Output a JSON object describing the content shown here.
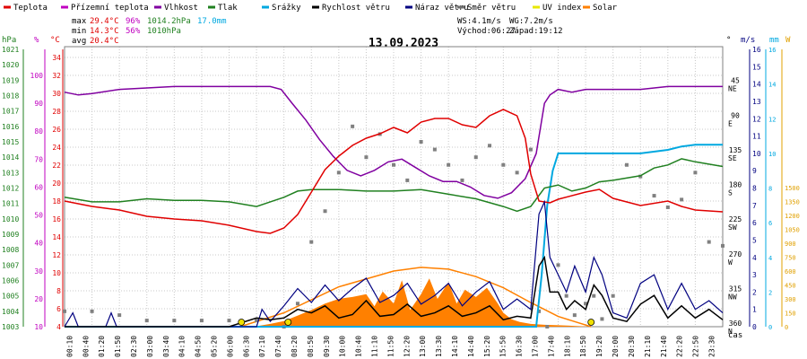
{
  "chart_data": {
    "type": "line",
    "title": "13.09.2023",
    "xlabel": "čas",
    "legend": [
      {
        "label": "Teplota",
        "color": "#e00000"
      },
      {
        "label": "Přízemní teplota",
        "color": "#c000c0"
      },
      {
        "label": "Vlhkost",
        "color": "#8000a0"
      },
      {
        "label": "Tlak",
        "color": "#208020"
      },
      {
        "label": "Srážky",
        "color": "#00a8e0"
      },
      {
        "label": "Rychlost větru",
        "color": "#000000"
      },
      {
        "label": "Náraz větru",
        "color": "#000080"
      },
      {
        "label": "Směr větru",
        "color": "#707070"
      },
      {
        "label": "UV index",
        "color": "#e8e800"
      },
      {
        "label": "Solar",
        "color": "#ff8000"
      }
    ],
    "stats": {
      "max_label": "max",
      "max_temp": "29.4°C",
      "max_hum": "96%",
      "max_press": "1014.2hPa",
      "max_rain": "17.0mm",
      "min_label": "min",
      "min_temp": "14.3°C",
      "min_hum": "56%",
      "min_press": "1010hPa",
      "avg_label": "avg",
      "avg_temp": "20.4°C",
      "ws": "WS:4.1m/s",
      "wg": "WG:7.2m/s",
      "sunrise": "Východ:06:27",
      "sunset": "Západ:19:12"
    },
    "axes": {
      "hpa": {
        "unit": "hPa",
        "color": "#208020",
        "ticks": [
          "1021",
          "1020",
          "1019",
          "1018",
          "1017",
          "1016",
          "1015",
          "1014",
          "1013",
          "1012",
          "1011",
          "1010",
          "1009",
          "1008",
          "1007",
          "1006",
          "1005",
          "1004",
          "1003"
        ]
      },
      "pct": {
        "unit": "%",
        "color": "#c000c0",
        "ticks": [
          "100",
          "90",
          "80",
          "70",
          "60",
          "50",
          "40",
          "30",
          "20",
          "10"
        ]
      },
      "temp": {
        "unit": "°C",
        "color": "#e00000",
        "ticks": [
          "34",
          "32",
          "30",
          "28",
          "26",
          "24",
          "22",
          "20",
          "18",
          "16",
          "14",
          "12",
          "10",
          "8",
          "6",
          "4"
        ]
      },
      "dir": {
        "unit": "°",
        "color": "#000000",
        "ticks": [
          {
            "v": "360",
            "d": "N"
          },
          {
            "v": "315",
            "d": "NW"
          },
          {
            "v": "270",
            "d": "W"
          },
          {
            "v": "225",
            "d": "SW"
          },
          {
            "v": "180",
            "d": "S"
          },
          {
            "v": "135",
            "d": "SE"
          },
          {
            "v": "90",
            "d": "E"
          },
          {
            "v": "45",
            "d": "NE"
          }
        ]
      },
      "ms": {
        "unit": "m/s",
        "color": "#000080",
        "ticks": [
          "16",
          "15",
          "14",
          "13",
          "12",
          "11",
          "10",
          "9",
          "8",
          "7",
          "6",
          "5",
          "4",
          "3",
          "2",
          "1",
          "0"
        ]
      },
      "mm": {
        "unit": "mm",
        "color": "#00a8e0",
        "ticks": [
          "16",
          "14",
          "12",
          "10",
          "8",
          "6",
          "4",
          "2",
          "0"
        ]
      },
      "w": {
        "unit": "W",
        "color": "#e0a000",
        "ticks": [
          "1500",
          "1350",
          "1200",
          "1050",
          "900",
          "750",
          "600",
          "450",
          "300",
          "150",
          "0"
        ]
      }
    },
    "x_times": [
      "00:10",
      "00:40",
      "01:20",
      "01:50",
      "02:30",
      "03:00",
      "03:40",
      "04:10",
      "04:50",
      "05:20",
      "06:00",
      "06:30",
      "07:10",
      "07:40",
      "08:20",
      "08:50",
      "09:30",
      "10:00",
      "10:40",
      "11:10",
      "11:50",
      "12:20",
      "13:00",
      "13:30",
      "14:10",
      "14:40",
      "15:20",
      "15:50",
      "16:30",
      "17:00",
      "17:40",
      "18:10",
      "18:50",
      "19:20",
      "20:00",
      "20:30",
      "21:10",
      "21:40",
      "22:20",
      "22:50",
      "23:30"
    ],
    "temperature": [
      [
        0,
        18
      ],
      [
        1,
        17.4
      ],
      [
        2,
        17
      ],
      [
        3,
        16.3
      ],
      [
        4,
        16
      ],
      [
        5,
        15.8
      ],
      [
        6,
        15.3
      ],
      [
        7,
        14.6
      ],
      [
        7.5,
        14.4
      ],
      [
        8,
        15
      ],
      [
        8.5,
        16.5
      ],
      [
        9,
        19
      ],
      [
        9.5,
        21.5
      ],
      [
        10,
        23
      ],
      [
        10.5,
        24.2
      ],
      [
        11,
        25
      ],
      [
        11.5,
        25.5
      ],
      [
        12,
        26.2
      ],
      [
        12.5,
        25.6
      ],
      [
        13,
        26.8
      ],
      [
        13.5,
        27.2
      ],
      [
        14,
        27.2
      ],
      [
        14.5,
        26.5
      ],
      [
        15,
        26.2
      ],
      [
        15.5,
        27.5
      ],
      [
        16,
        28.2
      ],
      [
        16.5,
        27.5
      ],
      [
        16.8,
        25
      ],
      [
        17,
        21
      ],
      [
        17.3,
        18
      ],
      [
        17.7,
        17.8
      ],
      [
        18,
        18.2
      ],
      [
        19,
        19
      ],
      [
        19.5,
        19.3
      ],
      [
        20,
        18.3
      ],
      [
        21,
        17.5
      ],
      [
        22,
        18
      ],
      [
        22.5,
        17.4
      ],
      [
        23,
        17
      ],
      [
        24,
        16.8
      ]
    ],
    "humidity": [
      [
        0,
        94
      ],
      [
        0.5,
        93
      ],
      [
        1,
        93.5
      ],
      [
        2,
        95
      ],
      [
        3,
        95.5
      ],
      [
        4,
        96
      ],
      [
        5,
        96
      ],
      [
        6,
        96
      ],
      [
        7,
        96
      ],
      [
        7.5,
        96
      ],
      [
        7.9,
        95
      ],
      [
        8.3,
        90
      ],
      [
        8.8,
        84
      ],
      [
        9.3,
        77
      ],
      [
        9.8,
        71
      ],
      [
        10.3,
        66
      ],
      [
        10.8,
        64
      ],
      [
        11.3,
        66
      ],
      [
        11.8,
        69
      ],
      [
        12.3,
        70
      ],
      [
        12.8,
        67
      ],
      [
        13.3,
        64
      ],
      [
        13.8,
        62
      ],
      [
        14.3,
        62
      ],
      [
        14.8,
        60
      ],
      [
        15.3,
        57
      ],
      [
        15.8,
        56
      ],
      [
        16.3,
        58
      ],
      [
        16.8,
        63
      ],
      [
        17.2,
        72
      ],
      [
        17.5,
        90
      ],
      [
        17.7,
        93
      ],
      [
        18,
        95
      ],
      [
        18.5,
        94
      ],
      [
        19,
        95
      ],
      [
        19.5,
        95
      ],
      [
        20,
        95
      ],
      [
        21,
        95
      ],
      [
        22,
        96
      ],
      [
        23,
        96
      ],
      [
        24,
        96
      ]
    ],
    "pressure": [
      [
        0,
        1011.4
      ],
      [
        1,
        1011.1
      ],
      [
        2,
        1011.1
      ],
      [
        3,
        1011.3
      ],
      [
        4,
        1011.2
      ],
      [
        5,
        1011.2
      ],
      [
        6,
        1011.1
      ],
      [
        7,
        1010.8
      ],
      [
        7.5,
        1011.1
      ],
      [
        8,
        1011.4
      ],
      [
        8.5,
        1011.8
      ],
      [
        9,
        1011.9
      ],
      [
        10,
        1011.9
      ],
      [
        11,
        1011.8
      ],
      [
        12,
        1011.8
      ],
      [
        13,
        1011.9
      ],
      [
        14,
        1011.6
      ],
      [
        15,
        1011.3
      ],
      [
        16,
        1010.8
      ],
      [
        16.5,
        1010.5
      ],
      [
        17,
        1010.8
      ],
      [
        17.5,
        1012
      ],
      [
        18,
        1012.2
      ],
      [
        18.5,
        1011.8
      ],
      [
        19,
        1012
      ],
      [
        19.5,
        1012.4
      ],
      [
        20,
        1012.5
      ],
      [
        21,
        1012.8
      ],
      [
        21.5,
        1013.3
      ],
      [
        22,
        1013.5
      ],
      [
        22.5,
        1013.9
      ],
      [
        23,
        1013.7
      ],
      [
        24,
        1013.4
      ]
    ],
    "rain_mm": [
      [
        0,
        0
      ],
      [
        17.2,
        0
      ],
      [
        17.4,
        3
      ],
      [
        17.6,
        7
      ],
      [
        17.8,
        9
      ],
      [
        18,
        10
      ],
      [
        18.2,
        10
      ],
      [
        19,
        10
      ],
      [
        20,
        10
      ],
      [
        21,
        10
      ],
      [
        22,
        10.2
      ],
      [
        22.5,
        10.4
      ],
      [
        23,
        10.5
      ],
      [
        24,
        10.5
      ]
    ],
    "solar_theoretical_w": [
      [
        6.4,
        0
      ],
      [
        8,
        150
      ],
      [
        10,
        430
      ],
      [
        12,
        600
      ],
      [
        13,
        640
      ],
      [
        14,
        620
      ],
      [
        15,
        540
      ],
      [
        16,
        420
      ],
      [
        17,
        260
      ],
      [
        18,
        110
      ],
      [
        19.2,
        0
      ]
    ],
    "solar_measured_w": [
      [
        6.9,
        0
      ],
      [
        7.5,
        30
      ],
      [
        8,
        60
      ],
      [
        8.5,
        120
      ],
      [
        9,
        180
      ],
      [
        9.5,
        250
      ],
      [
        10,
        300
      ],
      [
        10.5,
        320
      ],
      [
        11,
        350
      ],
      [
        11.3,
        220
      ],
      [
        11.6,
        380
      ],
      [
        12,
        250
      ],
      [
        12.3,
        500
      ],
      [
        12.6,
        180
      ],
      [
        13,
        350
      ],
      [
        13.3,
        520
      ],
      [
        13.6,
        300
      ],
      [
        14,
        480
      ],
      [
        14.3,
        250
      ],
      [
        14.6,
        400
      ],
      [
        15,
        320
      ],
      [
        15.4,
        420
      ],
      [
        15.8,
        250
      ],
      [
        16,
        150
      ],
      [
        16.3,
        80
      ],
      [
        16.6,
        50
      ],
      [
        17,
        30
      ],
      [
        17.5,
        20
      ],
      [
        18,
        15
      ],
      [
        18.5,
        10
      ],
      [
        19.2,
        0
      ]
    ],
    "wind_dir_deg": [
      [
        0,
        340
      ],
      [
        1,
        340
      ],
      [
        2,
        345
      ],
      [
        3,
        352
      ],
      [
        4,
        352
      ],
      [
        5,
        352
      ],
      [
        6,
        352
      ],
      [
        7,
        352
      ],
      [
        8,
        360
      ],
      [
        8.5,
        330
      ],
      [
        9,
        250
      ],
      [
        9.5,
        210
      ],
      [
        10,
        160
      ],
      [
        10.5,
        100
      ],
      [
        11,
        140
      ],
      [
        11.5,
        110
      ],
      [
        12,
        150
      ],
      [
        12.5,
        170
      ],
      [
        13,
        120
      ],
      [
        13.5,
        130
      ],
      [
        14,
        150
      ],
      [
        14.5,
        170
      ],
      [
        15,
        140
      ],
      [
        15.5,
        125
      ],
      [
        16,
        150
      ],
      [
        16.5,
        160
      ],
      [
        17,
        130
      ],
      [
        17.3,
        340
      ],
      [
        17.6,
        360
      ],
      [
        18,
        280
      ],
      [
        18.3,
        320
      ],
      [
        18.6,
        345
      ],
      [
        19,
        330
      ],
      [
        19.3,
        320
      ],
      [
        19.6,
        350
      ],
      [
        20,
        320
      ],
      [
        20.5,
        150
      ],
      [
        21,
        165
      ],
      [
        21.5,
        190
      ],
      [
        22,
        205
      ],
      [
        22.5,
        195
      ],
      [
        23,
        160
      ],
      [
        23.5,
        250
      ],
      [
        24,
        255
      ]
    ],
    "wind_speed_ms": [
      [
        0,
        0
      ],
      [
        1,
        0
      ],
      [
        2,
        0
      ],
      [
        3,
        0
      ],
      [
        4,
        0
      ],
      [
        5,
        0
      ],
      [
        6,
        0
      ],
      [
        7,
        0.5
      ],
      [
        7.5,
        0.4
      ],
      [
        8,
        0.5
      ],
      [
        8.5,
        1
      ],
      [
        9,
        0.8
      ],
      [
        9.5,
        1.2
      ],
      [
        10,
        0.5
      ],
      [
        10.5,
        0.7
      ],
      [
        11,
        1.5
      ],
      [
        11.5,
        0.6
      ],
      [
        12,
        0.7
      ],
      [
        12.5,
        1.3
      ],
      [
        13,
        0.6
      ],
      [
        13.5,
        0.8
      ],
      [
        14,
        1.2
      ],
      [
        14.5,
        0.6
      ],
      [
        15,
        0.8
      ],
      [
        15.5,
        1.2
      ],
      [
        16,
        0.4
      ],
      [
        16.5,
        0.6
      ],
      [
        17,
        0.5
      ],
      [
        17.3,
        3.5
      ],
      [
        17.5,
        4
      ],
      [
        17.7,
        2
      ],
      [
        18,
        2
      ],
      [
        18.3,
        1
      ],
      [
        18.6,
        1.5
      ],
      [
        19,
        1
      ],
      [
        19.3,
        2.4
      ],
      [
        19.6,
        1.8
      ],
      [
        20,
        0.5
      ],
      [
        20.5,
        0.3
      ],
      [
        21,
        1.3
      ],
      [
        21.5,
        1.8
      ],
      [
        22,
        0.5
      ],
      [
        22.5,
        1.2
      ],
      [
        23,
        0.5
      ],
      [
        23.5,
        1
      ],
      [
        24,
        0.4
      ]
    ],
    "wind_gust_ms": [
      [
        0,
        0
      ],
      [
        0.3,
        0.8
      ],
      [
        0.5,
        0
      ],
      [
        1.5,
        0
      ],
      [
        1.7,
        0.8
      ],
      [
        1.9,
        0
      ],
      [
        7,
        0
      ],
      [
        7.2,
        1
      ],
      [
        7.5,
        0.3
      ],
      [
        8,
        1.2
      ],
      [
        8.5,
        2.2
      ],
      [
        9,
        1.4
      ],
      [
        9.5,
        2.4
      ],
      [
        10,
        1.5
      ],
      [
        10.5,
        2.2
      ],
      [
        11,
        2.8
      ],
      [
        11.5,
        1.4
      ],
      [
        12,
        1.8
      ],
      [
        12.5,
        2.5
      ],
      [
        13,
        1.3
      ],
      [
        13.5,
        1.8
      ],
      [
        14,
        2.5
      ],
      [
        14.5,
        1.2
      ],
      [
        15,
        2
      ],
      [
        15.5,
        2.6
      ],
      [
        16,
        1
      ],
      [
        16.5,
        1.6
      ],
      [
        17,
        1
      ],
      [
        17.3,
        6.5
      ],
      [
        17.5,
        7.2
      ],
      [
        17.7,
        4
      ],
      [
        18,
        3
      ],
      [
        18.3,
        2
      ],
      [
        18.6,
        3.5
      ],
      [
        19,
        2
      ],
      [
        19.3,
        4
      ],
      [
        19.6,
        3
      ],
      [
        20,
        0.8
      ],
      [
        20.5,
        0.5
      ],
      [
        21,
        2.5
      ],
      [
        21.5,
        3
      ],
      [
        22,
        1
      ],
      [
        22.5,
        2.5
      ],
      [
        23,
        1
      ],
      [
        23.5,
        1.5
      ],
      [
        24,
        0.8
      ]
    ],
    "uv_markers_hour": [
      6.45,
      8.15,
      19.2
    ]
  }
}
